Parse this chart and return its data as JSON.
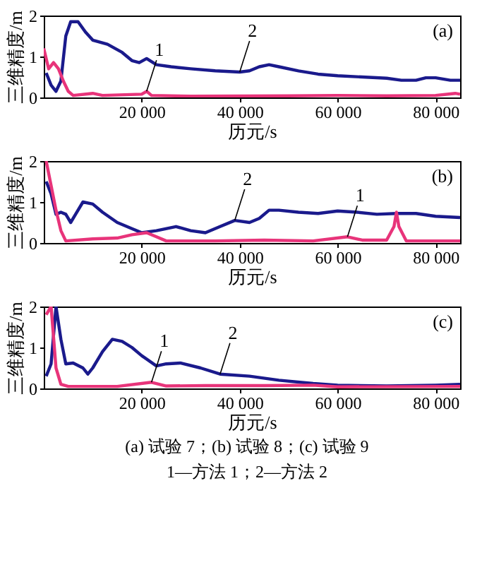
{
  "chart_data": [
    {
      "type": "line",
      "xlabel": "历元/s",
      "ylabel": "三维精度/m",
      "xlim": [
        0,
        85000
      ],
      "ylim": [
        0,
        2
      ],
      "yticks": [
        0,
        1,
        2
      ],
      "xticks": [
        {
          "value": 20000,
          "label": "20 000"
        },
        {
          "value": 40000,
          "label": "40 000"
        },
        {
          "value": 60000,
          "label": "60 000"
        },
        {
          "value": 80000,
          "label": "80 000"
        }
      ],
      "annotations": [
        "(a)",
        {
          "text": "1",
          "x": 21000,
          "y": 0.15
        },
        {
          "text": "2",
          "x": 40000,
          "y": 0.62
        }
      ],
      "series": [
        {
          "color": "#1a1a8c",
          "x": [
            500,
            1500,
            2500,
            3500,
            4500,
            5500,
            7000,
            8500,
            10000,
            13000,
            16000,
            18000,
            19500,
            21000,
            23000,
            26000,
            30000,
            35000,
            40000,
            42000,
            44000,
            46000,
            48000,
            52000,
            56000,
            60000,
            65000,
            70000,
            73000,
            76000,
            78000,
            80000,
            83000,
            85000
          ],
          "values": [
            0.6,
            0.3,
            0.15,
            0.4,
            1.5,
            1.85,
            1.85,
            1.6,
            1.4,
            1.3,
            1.1,
            0.9,
            0.85,
            0.95,
            0.8,
            0.75,
            0.7,
            0.65,
            0.62,
            0.65,
            0.75,
            0.8,
            0.75,
            0.65,
            0.57,
            0.53,
            0.5,
            0.47,
            0.42,
            0.42,
            0.48,
            0.48,
            0.42,
            0.42
          ]
        },
        {
          "color": "#e8347a",
          "x": [
            0,
            1000,
            2000,
            3000,
            4000,
            5000,
            6000,
            10000,
            12000,
            20000,
            21000,
            22000,
            30000,
            50000,
            60000,
            70000,
            80000,
            84000,
            85000
          ],
          "values": [
            1.2,
            0.7,
            0.85,
            0.7,
            0.4,
            0.15,
            0.05,
            0.1,
            0.05,
            0.08,
            0.15,
            0.05,
            0.03,
            0.04,
            0.05,
            0.04,
            0.05,
            0.1,
            0.08
          ]
        }
      ]
    },
    {
      "type": "line",
      "xlabel": "历元/s",
      "ylabel": "三维精度/m",
      "xlim": [
        0,
        85000
      ],
      "ylim": [
        0,
        2
      ],
      "yticks": [
        0,
        1,
        2
      ],
      "xticks": [
        {
          "value": 20000,
          "label": "20 000"
        },
        {
          "value": 40000,
          "label": "40 000"
        },
        {
          "value": 60000,
          "label": "60 000"
        },
        {
          "value": 80000,
          "label": "80 000"
        }
      ],
      "annotations": [
        "(b)",
        {
          "text": "2",
          "x": 39000,
          "y": 0.55
        },
        {
          "text": "1",
          "x": 62000,
          "y": 0.15
        }
      ],
      "series": [
        {
          "color": "#1a1a8c",
          "x": [
            500,
            1500,
            2500,
            3500,
            4500,
            5500,
            6500,
            8000,
            10000,
            12000,
            15000,
            18000,
            20000,
            23000,
            27000,
            30000,
            33000,
            36000,
            39000,
            42000,
            44000,
            46000,
            48000,
            52000,
            56000,
            60000,
            64000,
            68000,
            72000,
            76000,
            80000,
            85000
          ],
          "values": [
            1.5,
            1.2,
            0.7,
            0.75,
            0.7,
            0.5,
            0.7,
            1.0,
            0.95,
            0.75,
            0.5,
            0.35,
            0.25,
            0.3,
            0.4,
            0.3,
            0.25,
            0.4,
            0.55,
            0.5,
            0.6,
            0.8,
            0.8,
            0.75,
            0.72,
            0.78,
            0.75,
            0.7,
            0.72,
            0.72,
            0.65,
            0.62
          ]
        },
        {
          "color": "#e8347a",
          "x": [
            500,
            1500,
            2500,
            3500,
            4500,
            10000,
            15000,
            18000,
            21000,
            23000,
            25000,
            35000,
            45000,
            55000,
            62000,
            65000,
            70000,
            71500,
            72000,
            72500,
            74000,
            85000
          ],
          "values": [
            2.0,
            1.4,
            0.8,
            0.3,
            0.05,
            0.1,
            0.12,
            0.2,
            0.25,
            0.15,
            0.05,
            0.05,
            0.07,
            0.05,
            0.15,
            0.07,
            0.07,
            0.4,
            0.75,
            0.4,
            0.05,
            0.05
          ]
        }
      ]
    },
    {
      "type": "line",
      "xlabel": "历元/s",
      "ylabel": "三维精度/m",
      "xlim": [
        0,
        85000
      ],
      "ylim": [
        0,
        2
      ],
      "yticks": [
        0,
        1,
        2
      ],
      "xticks": [
        {
          "value": 20000,
          "label": "20 000"
        },
        {
          "value": 40000,
          "label": "40 000"
        },
        {
          "value": 60000,
          "label": "60 000"
        },
        {
          "value": 80000,
          "label": "80 000"
        }
      ],
      "annotations": [
        "(c)",
        {
          "text": "1",
          "x": 22000,
          "y": 0.15
        },
        {
          "text": "2",
          "x": 36000,
          "y": 0.35
        },
        "(a) 试验 7；(b) 试验 8；(c) 试验 9",
        "1—方法 1；2—方法 2"
      ],
      "series": [
        {
          "color": "#1a1a8c",
          "x": [
            500,
            1500,
            2500,
            3500,
            4500,
            6000,
            8000,
            9000,
            10000,
            12000,
            14000,
            16000,
            18000,
            20000,
            23000,
            25000,
            28000,
            32000,
            36000,
            42000,
            48000,
            55000,
            60000,
            70000,
            80000,
            85000
          ],
          "values": [
            0.3,
            0.6,
            2.0,
            1.2,
            0.6,
            0.62,
            0.5,
            0.35,
            0.5,
            0.9,
            1.2,
            1.15,
            1.0,
            0.8,
            0.55,
            0.6,
            0.62,
            0.5,
            0.35,
            0.3,
            0.2,
            0.12,
            0.08,
            0.06,
            0.08,
            0.1
          ]
        },
        {
          "color": "#e8347a",
          "x": [
            500,
            1500,
            2500,
            3500,
            5000,
            15000,
            22000,
            25000,
            33000,
            45000,
            55000,
            60000,
            85000
          ],
          "values": [
            1.8,
            2.0,
            0.5,
            0.1,
            0.05,
            0.05,
            0.15,
            0.06,
            0.07,
            0.07,
            0.08,
            0.04,
            0.05
          ]
        }
      ]
    }
  ]
}
